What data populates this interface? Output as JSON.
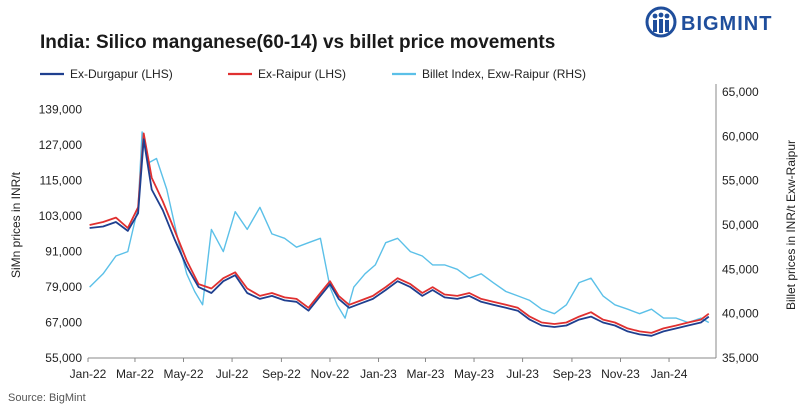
{
  "header": {
    "title": "India: Silico manganese(60-14) vs billet price movements",
    "brand": "BIGMINT",
    "source": "Source: BigMint"
  },
  "colors": {
    "durgapur": "#1f3f8f",
    "raipur": "#e03030",
    "billet": "#5bc0e8",
    "logo": "#1f4e9c",
    "axis": "#888888"
  },
  "chart_data": {
    "type": "line",
    "title": "India: Silico manganese(60-14) vs billet price movements",
    "ylabel": "SiMn prices in INR/t",
    "y2label": "Billet prices in INR/t Exw-Raipur",
    "ylim": [
      55000,
      145000
    ],
    "y2lim": [
      35000,
      65000
    ],
    "yticks": [
      "55,000",
      "67,000",
      "79,000",
      "91,000",
      "103,000",
      "115,000",
      "127,000",
      "139,000"
    ],
    "y2ticks": [
      "35,000",
      "40,000",
      "45,000",
      "50,000",
      "55,000",
      "60,000",
      "65,000"
    ],
    "xticks": [
      "Jan-22",
      "Mar-22",
      "May-22",
      "Jul-22",
      "Sep-22",
      "Nov-22",
      "Jan-23",
      "Mar-23",
      "May-23",
      "Jul-23",
      "Sep-23",
      "Nov-23",
      "Jan-24"
    ],
    "legend_position": "top",
    "series": [
      {
        "name": "Ex-Durgapur (LHS)",
        "axis": "left",
        "x": [
          "2022-01-03",
          "2022-01-20",
          "2022-02-05",
          "2022-02-20",
          "2022-03-05",
          "2022-03-12",
          "2022-03-22",
          "2022-04-05",
          "2022-04-20",
          "2022-05-05",
          "2022-05-20",
          "2022-06-05",
          "2022-06-20",
          "2022-07-05",
          "2022-07-20",
          "2022-08-05",
          "2022-08-20",
          "2022-09-05",
          "2022-09-20",
          "2022-10-05",
          "2022-10-20",
          "2022-11-01",
          "2022-11-12",
          "2022-11-25",
          "2022-12-10",
          "2022-12-25",
          "2023-01-10",
          "2023-01-25",
          "2023-02-10",
          "2023-02-25",
          "2023-03-10",
          "2023-03-25",
          "2023-04-10",
          "2023-04-25",
          "2023-05-10",
          "2023-05-25",
          "2023-06-10",
          "2023-06-25",
          "2023-07-10",
          "2023-07-25",
          "2023-08-10",
          "2023-08-25",
          "2023-09-10",
          "2023-09-25",
          "2023-10-10",
          "2023-10-25",
          "2023-11-10",
          "2023-11-25",
          "2023-12-10",
          "2023-12-25",
          "2024-01-10",
          "2024-01-25",
          "2024-02-10",
          "2024-02-20"
        ],
        "values": [
          99000,
          99500,
          101000,
          98000,
          104000,
          129000,
          112000,
          105000,
          95000,
          86000,
          79000,
          77000,
          81000,
          83000,
          77000,
          75000,
          76000,
          74500,
          74000,
          71000,
          76000,
          80000,
          75000,
          72000,
          73500,
          75000,
          78000,
          81000,
          79000,
          76000,
          78000,
          75500,
          75000,
          76000,
          74000,
          73000,
          72000,
          71000,
          68000,
          66000,
          65500,
          66000,
          68000,
          69000,
          67000,
          66000,
          64000,
          63000,
          62500,
          64000,
          65000,
          66000,
          67000,
          69000
        ]
      },
      {
        "name": "Ex-Raipur (LHS)",
        "axis": "left",
        "x": [
          "2022-01-03",
          "2022-01-20",
          "2022-02-05",
          "2022-02-20",
          "2022-03-05",
          "2022-03-12",
          "2022-03-22",
          "2022-04-05",
          "2022-04-20",
          "2022-05-05",
          "2022-05-20",
          "2022-06-05",
          "2022-06-20",
          "2022-07-05",
          "2022-07-20",
          "2022-08-05",
          "2022-08-20",
          "2022-09-05",
          "2022-09-20",
          "2022-10-05",
          "2022-10-20",
          "2022-11-01",
          "2022-11-12",
          "2022-11-25",
          "2022-12-10",
          "2022-12-25",
          "2023-01-10",
          "2023-01-25",
          "2023-02-10",
          "2023-02-25",
          "2023-03-10",
          "2023-03-25",
          "2023-04-10",
          "2023-04-25",
          "2023-05-10",
          "2023-05-25",
          "2023-06-10",
          "2023-06-25",
          "2023-07-10",
          "2023-07-25",
          "2023-08-10",
          "2023-08-25",
          "2023-09-10",
          "2023-09-25",
          "2023-10-10",
          "2023-10-25",
          "2023-11-10",
          "2023-11-25",
          "2023-12-10",
          "2023-12-25",
          "2024-01-10",
          "2024-01-25",
          "2024-02-10",
          "2024-02-20"
        ],
        "values": [
          100000,
          101000,
          102500,
          99000,
          106000,
          131000,
          116000,
          108000,
          98000,
          88000,
          80000,
          78500,
          82000,
          84000,
          78500,
          76000,
          77000,
          75500,
          75000,
          72000,
          77000,
          81000,
          76000,
          73000,
          74500,
          76000,
          79000,
          82000,
          80000,
          77000,
          79000,
          76500,
          76000,
          77000,
          75000,
          74000,
          73000,
          72000,
          69000,
          67000,
          66500,
          67000,
          69000,
          70500,
          68000,
          67000,
          65000,
          64000,
          63500,
          65000,
          66000,
          67000,
          68000,
          70000
        ]
      },
      {
        "name": "Billet Index, Exw-Raipur (RHS)",
        "axis": "right",
        "x": [
          "2022-01-03",
          "2022-01-20",
          "2022-02-05",
          "2022-02-20",
          "2022-03-05",
          "2022-03-10",
          "2022-03-18",
          "2022-03-28",
          "2022-04-10",
          "2022-04-25",
          "2022-05-05",
          "2022-05-15",
          "2022-05-25",
          "2022-06-05",
          "2022-06-20",
          "2022-07-05",
          "2022-07-20",
          "2022-08-05",
          "2022-08-20",
          "2022-09-05",
          "2022-09-20",
          "2022-10-05",
          "2022-10-20",
          "2022-11-01",
          "2022-11-10",
          "2022-11-20",
          "2022-12-01",
          "2022-12-15",
          "2022-12-28",
          "2023-01-10",
          "2023-01-25",
          "2023-02-10",
          "2023-02-25",
          "2023-03-10",
          "2023-03-25",
          "2023-04-10",
          "2023-04-25",
          "2023-05-10",
          "2023-05-25",
          "2023-06-10",
          "2023-06-25",
          "2023-07-10",
          "2023-07-25",
          "2023-08-10",
          "2023-08-25",
          "2023-09-10",
          "2023-09-25",
          "2023-10-10",
          "2023-10-25",
          "2023-11-10",
          "2023-11-25",
          "2023-12-10",
          "2023-12-25",
          "2024-01-10",
          "2024-01-25",
          "2024-02-10",
          "2024-02-20"
        ],
        "values": [
          43000,
          44500,
          46500,
          47000,
          52000,
          60500,
          57000,
          57500,
          54000,
          48000,
          44500,
          42500,
          41000,
          49500,
          47000,
          51500,
          49500,
          52000,
          49000,
          48500,
          47500,
          48000,
          48500,
          43000,
          41000,
          39500,
          43000,
          44500,
          45500,
          48000,
          48500,
          47000,
          46500,
          45500,
          45500,
          45000,
          44000,
          44500,
          43500,
          42500,
          42000,
          41500,
          40500,
          40000,
          41000,
          43500,
          44000,
          42000,
          41000,
          40500,
          40000,
          40500,
          39500,
          39500,
          39000,
          39500,
          39000
        ]
      }
    ]
  }
}
